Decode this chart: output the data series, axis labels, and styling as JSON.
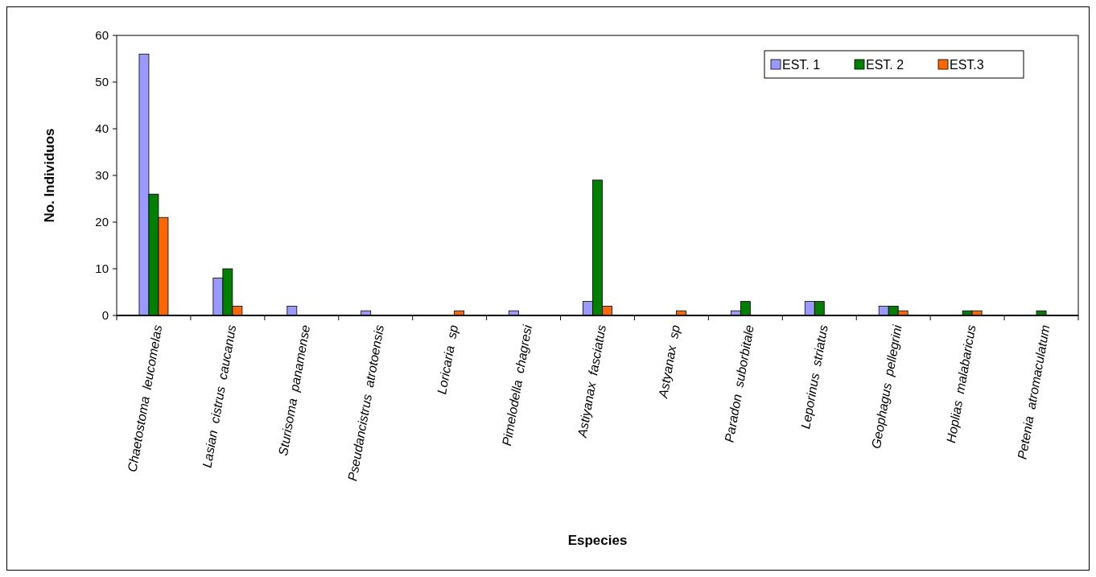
{
  "chart_data": {
    "type": "bar",
    "xlabel": "Especies",
    "ylabel": "No. Individuos",
    "categories": [
      "Chaetostoma  leucomelas",
      "Lasian  cistrus  caucanus",
      "Sturisoma  panamense",
      "Pseudancistrus  atrotoensis",
      "Loricaria  sp",
      "Pimelodella  chagresi",
      "Astiyanax  fasciatus",
      "Astyanax  sp",
      "Paradon  suborbitale",
      "Leporinus  striatus",
      "Geophagus  pellegrini",
      "Hoplias  malabaricus",
      "Petenia  atromaculatum"
    ],
    "series": [
      {
        "name": "EST. 1",
        "color": "#9999ff",
        "values": [
          56,
          8,
          2,
          1,
          0,
          1,
          3,
          0,
          1,
          3,
          2,
          0,
          0
        ]
      },
      {
        "name": "EST. 2",
        "color": "#008000",
        "values": [
          26,
          10,
          0,
          0,
          0,
          0,
          29,
          0,
          3,
          3,
          2,
          1,
          1
        ]
      },
      {
        "name": "EST.3",
        "color": "#ff6600",
        "values": [
          21,
          2,
          0,
          0,
          1,
          0,
          2,
          1,
          0,
          0,
          1,
          1,
          0
        ]
      }
    ],
    "ylim": [
      0,
      60
    ],
    "yticks": [
      0,
      10,
      20,
      30,
      40,
      50,
      60
    ],
    "legend": "top right"
  }
}
